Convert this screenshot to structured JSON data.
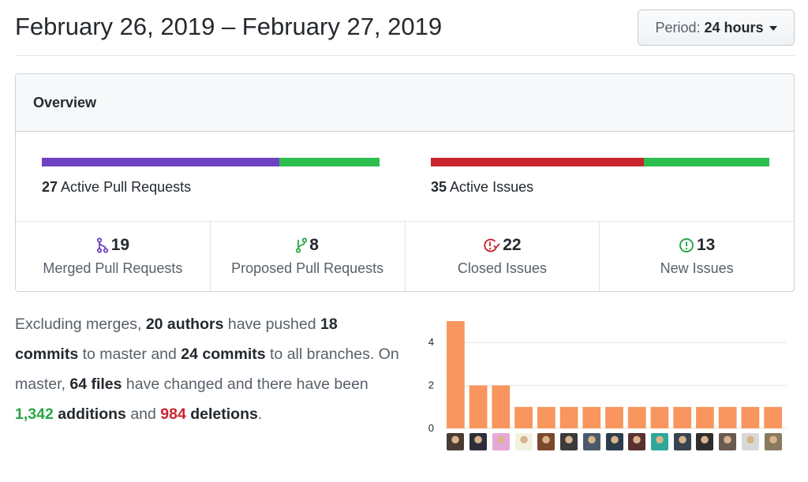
{
  "header": {
    "date_range": "February 26, 2019 – February 27, 2019",
    "period_label": "Period:",
    "period_value": "24 hours"
  },
  "overview": {
    "title": "Overview",
    "pull_requests": {
      "count": "27",
      "label": "Active Pull Requests",
      "merged_fraction": 0.7037,
      "colors": {
        "merged": "#6f42c1",
        "open": "#2cbe4e"
      }
    },
    "issues": {
      "count": "35",
      "label": "Active Issues",
      "closed_fraction": 0.6286,
      "colors": {
        "closed": "#cb2431",
        "new": "#2cbe4e"
      }
    },
    "stats": [
      {
        "icon": "git-merge-icon",
        "count": "19",
        "label": "Merged Pull Requests",
        "color": "#6f42c1"
      },
      {
        "icon": "git-pull-request-icon",
        "count": "8",
        "label": "Proposed Pull Requests",
        "color": "#28a745"
      },
      {
        "icon": "issue-closed-icon",
        "count": "22",
        "label": "Closed Issues",
        "color": "#cb2431"
      },
      {
        "icon": "issue-opened-icon",
        "count": "13",
        "label": "New Issues",
        "color": "#28a745"
      }
    ]
  },
  "summary": {
    "t1": "Excluding merges, ",
    "authors": "20 authors",
    "t2": " have pushed ",
    "master_commits": "18 commits",
    "t3": " to master and ",
    "all_commits": "24 commits",
    "t4": " to all branches. On master, ",
    "files": "64 files",
    "t5": " have changed and there have been ",
    "additions_num": "1,342",
    "additions_word": " additions",
    "t6": " and ",
    "deletions_num": "984",
    "deletions_word": " deletions",
    "t7": "."
  },
  "chart_data": {
    "type": "bar",
    "title": "",
    "xlabel": "",
    "ylabel": "",
    "ylim": [
      0,
      5
    ],
    "yticks": [
      "0",
      "2",
      "4"
    ],
    "bar_color": "#f9955e",
    "categories": [
      "author-1",
      "author-2",
      "author-3",
      "author-4",
      "author-5",
      "author-6",
      "author-7",
      "author-8",
      "author-9",
      "author-10",
      "author-11",
      "author-12",
      "author-13",
      "author-14",
      "author-15"
    ],
    "values": [
      5,
      2,
      2,
      1,
      1,
      1,
      1,
      1,
      1,
      1,
      1,
      1,
      1,
      1,
      1
    ],
    "avatar_colors": [
      "#4a3b33",
      "#2f2f3a",
      "#e6a8d8",
      "#f2f2e0",
      "#7a4a2a",
      "#3b3b3b",
      "#4b5a6a",
      "#2d3d4d",
      "#5a3030",
      "#2fa89a",
      "#3a4450",
      "#2e2e2e",
      "#6a5a50",
      "#d8d8d8",
      "#8a7a60"
    ]
  }
}
